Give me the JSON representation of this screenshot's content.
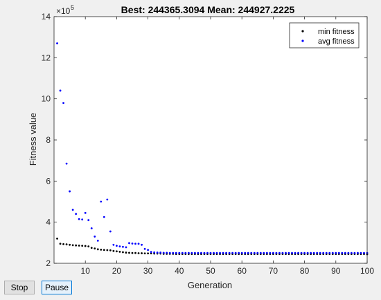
{
  "controls": {
    "stop_label": "Stop",
    "pause_label": "Pause"
  },
  "chart_data": {
    "type": "scatter",
    "title": "Best: 244365.3094 Mean: 244927.2225",
    "xlabel": "Generation",
    "ylabel": "Fitness value",
    "y_exponent_label": "×10",
    "y_exponent_power": "5",
    "xlim": [
      0,
      100
    ],
    "ylim": [
      2,
      14
    ],
    "y_scale_factor": 100000,
    "xticks": [
      10,
      20,
      30,
      40,
      50,
      60,
      70,
      80,
      90,
      100
    ],
    "yticks": [
      2,
      4,
      6,
      8,
      10,
      12,
      14
    ],
    "grid": false,
    "legend_position": "top-right",
    "series": [
      {
        "name": "min fitness",
        "color": "#000000",
        "x": [
          1,
          2,
          3,
          4,
          5,
          6,
          7,
          8,
          9,
          10,
          11,
          12,
          13,
          14,
          15,
          16,
          17,
          18,
          19,
          20,
          21,
          22,
          23,
          24,
          25,
          26,
          27,
          28,
          29,
          30,
          31,
          32,
          33,
          34,
          35,
          36,
          37,
          38,
          39,
          40,
          41,
          42,
          43,
          44,
          45,
          46,
          47,
          48,
          49,
          50,
          51,
          52,
          53,
          54,
          55,
          56,
          57,
          58,
          59,
          60,
          61,
          62,
          63,
          64,
          65,
          66,
          67,
          68,
          69,
          70,
          71,
          72,
          73,
          74,
          75,
          76,
          77,
          78,
          79,
          80,
          81,
          82,
          83,
          84,
          85,
          86,
          87,
          88,
          89,
          90,
          91,
          92,
          93,
          94,
          95,
          96,
          97,
          98,
          99,
          100
        ],
        "y": [
          3.2,
          2.95,
          2.93,
          2.92,
          2.9,
          2.88,
          2.87,
          2.86,
          2.85,
          2.84,
          2.82,
          2.75,
          2.72,
          2.68,
          2.66,
          2.65,
          2.64,
          2.63,
          2.6,
          2.58,
          2.56,
          2.54,
          2.52,
          2.51,
          2.5,
          2.5,
          2.49,
          2.49,
          2.48,
          2.48,
          2.48,
          2.47,
          2.47,
          2.47,
          2.46,
          2.46,
          2.46,
          2.46,
          2.45,
          2.45,
          2.45,
          2.45,
          2.45,
          2.45,
          2.45,
          2.45,
          2.45,
          2.45,
          2.45,
          2.45,
          2.45,
          2.45,
          2.45,
          2.45,
          2.45,
          2.45,
          2.45,
          2.45,
          2.45,
          2.45,
          2.45,
          2.45,
          2.45,
          2.45,
          2.45,
          2.45,
          2.45,
          2.45,
          2.45,
          2.45,
          2.45,
          2.45,
          2.45,
          2.45,
          2.45,
          2.45,
          2.45,
          2.45,
          2.45,
          2.45,
          2.45,
          2.45,
          2.45,
          2.45,
          2.45,
          2.45,
          2.45,
          2.45,
          2.45,
          2.45,
          2.45,
          2.45,
          2.45,
          2.45,
          2.45,
          2.45,
          2.45,
          2.45,
          2.45,
          2.44
        ]
      },
      {
        "name": "avg fitness",
        "color": "#0000ff",
        "x": [
          1,
          2,
          3,
          4,
          5,
          6,
          7,
          8,
          9,
          10,
          11,
          12,
          13,
          14,
          15,
          16,
          17,
          18,
          19,
          20,
          21,
          22,
          23,
          24,
          25,
          26,
          27,
          28,
          29,
          30,
          31,
          32,
          33,
          34,
          35,
          36,
          37,
          38,
          39,
          40,
          41,
          42,
          43,
          44,
          45,
          46,
          47,
          48,
          49,
          50,
          51,
          52,
          53,
          54,
          55,
          56,
          57,
          58,
          59,
          60,
          61,
          62,
          63,
          64,
          65,
          66,
          67,
          68,
          69,
          70,
          71,
          72,
          73,
          74,
          75,
          76,
          77,
          78,
          79,
          80,
          81,
          82,
          83,
          84,
          85,
          86,
          87,
          88,
          89,
          90,
          91,
          92,
          93,
          94,
          95,
          96,
          97,
          98,
          99,
          100
        ],
        "y": [
          12.7,
          10.4,
          9.8,
          6.85,
          5.5,
          4.6,
          4.4,
          4.15,
          4.13,
          4.45,
          4.1,
          3.7,
          3.3,
          3.1,
          5.0,
          4.25,
          5.1,
          3.55,
          2.9,
          2.85,
          2.82,
          2.8,
          2.78,
          2.98,
          2.96,
          2.95,
          2.95,
          2.9,
          2.7,
          2.65,
          2.55,
          2.53,
          2.52,
          2.52,
          2.51,
          2.51,
          2.5,
          2.5,
          2.5,
          2.5,
          2.5,
          2.5,
          2.5,
          2.5,
          2.5,
          2.5,
          2.5,
          2.5,
          2.5,
          2.5,
          2.5,
          2.5,
          2.5,
          2.5,
          2.5,
          2.5,
          2.5,
          2.5,
          2.5,
          2.5,
          2.5,
          2.5,
          2.5,
          2.5,
          2.5,
          2.5,
          2.5,
          2.5,
          2.5,
          2.5,
          2.5,
          2.5,
          2.5,
          2.5,
          2.5,
          2.5,
          2.5,
          2.5,
          2.5,
          2.5,
          2.5,
          2.5,
          2.5,
          2.5,
          2.5,
          2.5,
          2.5,
          2.5,
          2.5,
          2.5,
          2.5,
          2.5,
          2.5,
          2.5,
          2.5,
          2.5,
          2.5,
          2.5,
          2.5,
          2.5
        ]
      }
    ]
  }
}
